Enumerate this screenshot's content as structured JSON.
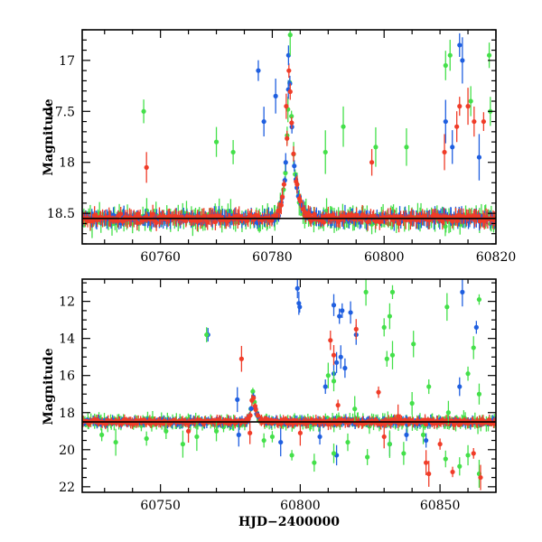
{
  "colors": {
    "blue": "#1f5fe0",
    "green": "#44e04a",
    "red": "#f03c28",
    "baseline": "#000000"
  },
  "chart_data": [
    {
      "type": "scatter",
      "title": "",
      "xlabel": "",
      "ylabel": "Magnitude",
      "xlim": [
        60746,
        60820
      ],
      "ylim": [
        18.8,
        16.7
      ],
      "y_inverted": true,
      "x_ticks": [
        60760,
        60780,
        60800,
        60820
      ],
      "x_tick_labels": [
        "60760",
        "60780",
        "60800",
        "60820"
      ],
      "y_ticks": [
        17,
        17.5,
        18,
        18.5
      ],
      "y_tick_labels": [
        "17",
        "17.5",
        "18",
        "18.5"
      ],
      "grid": false,
      "legend": "none",
      "baseline_magnitude": 18.55,
      "series": [
        {
          "color": "blue",
          "outliers": [
            [
              60777.5,
              17.1
            ],
            [
              60778.5,
              17.6
            ],
            [
              60780.6,
              17.35
            ],
            [
              60782.9,
              16.95
            ],
            [
              60811,
              17.6
            ],
            [
              60812.2,
              17.85
            ],
            [
              60813.5,
              16.85
            ],
            [
              60814,
              17.0
            ],
            [
              60817,
              17.95
            ]
          ]
        },
        {
          "color": "green",
          "outliers": [
            [
              60757,
              17.5
            ],
            [
              60783.2,
              16.75
            ],
            [
              60789.5,
              17.9
            ],
            [
              60792.7,
              17.65
            ],
            [
              60798.5,
              17.85
            ],
            [
              60804,
              17.85
            ],
            [
              60811,
              17.05
            ],
            [
              60811.8,
              16.95
            ],
            [
              60815.5,
              17.4
            ],
            [
              60818.8,
              16.95
            ],
            [
              60819,
              17.5
            ],
            [
              60770,
              17.8
            ],
            [
              60773,
              17.9
            ]
          ]
        },
        {
          "color": "red",
          "outliers": [
            [
              60757.5,
              18.05
            ],
            [
              60782.5,
              17.45
            ],
            [
              60797.8,
              18.0
            ],
            [
              60810.8,
              17.9
            ],
            [
              60813.5,
              17.45
            ],
            [
              60815,
              17.45
            ],
            [
              60816.1,
              17.6
            ],
            [
              60817.8,
              17.6
            ],
            [
              60813,
              17.65
            ]
          ]
        }
      ]
    },
    {
      "type": "scatter",
      "title": "",
      "xlabel": "HJD−2400000",
      "ylabel": "Magnitude",
      "xlim": [
        60722,
        60870
      ],
      "ylim": [
        22.3,
        10.8
      ],
      "y_inverted": true,
      "x_ticks": [
        60750,
        60800,
        60850
      ],
      "x_tick_labels": [
        "60750",
        "60800",
        "60850"
      ],
      "y_ticks": [
        12,
        14,
        16,
        18,
        20,
        22
      ],
      "y_tick_labels": [
        "12",
        "14",
        "16",
        "18",
        "20",
        "22"
      ],
      "grid": false,
      "legend": "none",
      "baseline_magnitude": 18.5,
      "series": [
        {
          "color": "blue",
          "outliers": [
            [
              60767,
              13.8
            ],
            [
              60777.5,
              17.3
            ],
            [
              60799,
              11.3
            ],
            [
              60799.5,
              12.1
            ],
            [
              60799.8,
              12.3
            ],
            [
              60812,
              12.2
            ],
            [
              60815,
              12.5
            ],
            [
              60814,
              12.8
            ],
            [
              60818,
              12.6
            ],
            [
              60820,
              13.8
            ],
            [
              60809,
              16.6
            ],
            [
              60813,
              15.3
            ],
            [
              60814.5,
              15.0
            ],
            [
              60816,
              15.6
            ],
            [
              60812,
              15.9
            ],
            [
              60858,
              11.5
            ],
            [
              60857,
              16.6
            ],
            [
              60863,
              13.4
            ],
            [
              60778,
              19.2
            ],
            [
              60793,
              19.6
            ],
            [
              60807,
              19.3
            ],
            [
              60813,
              20.3
            ],
            [
              60832,
              19.7
            ],
            [
              60838,
              19.2
            ],
            [
              60845,
              19.5
            ]
          ]
        },
        {
          "color": "green",
          "outliers": [
            [
              60766.5,
              13.8
            ],
            [
              60823.5,
              11.5
            ],
            [
              60833,
              11.5
            ],
            [
              60832,
              12.8
            ],
            [
              60830,
              13.4
            ],
            [
              60833,
              14.9
            ],
            [
              60831,
              15.1
            ],
            [
              60840.5,
              14.3
            ],
            [
              60852.5,
              12.3
            ],
            [
              60864,
              11.9
            ],
            [
              60862,
              14.5
            ],
            [
              60810,
              16.0
            ],
            [
              60812,
              16.3
            ],
            [
              60819.5,
              17.8
            ],
            [
              60840,
              17.5
            ],
            [
              60846,
              16.6
            ],
            [
              60860,
              15.9
            ],
            [
              60864,
              17.0
            ],
            [
              60853,
              18.0
            ],
            [
              60734,
              19.6
            ],
            [
              60745,
              19.4
            ],
            [
              60758,
              19.7
            ],
            [
              60763,
              19.3
            ],
            [
              60787,
              19.5
            ],
            [
              60797,
              20.3
            ],
            [
              60805,
              20.7
            ],
            [
              60812,
              20.2
            ],
            [
              60817,
              19.6
            ],
            [
              60824,
              20.4
            ],
            [
              60832,
              19.7
            ],
            [
              60837,
              20.2
            ],
            [
              60844,
              19.2
            ],
            [
              60852,
              20.5
            ],
            [
              60857,
              20.9
            ],
            [
              60860,
              20.3
            ],
            [
              60864,
              21.3
            ],
            [
              60729,
              19.2
            ],
            [
              60752,
              19.0
            ],
            [
              60770,
              19.0
            ],
            [
              60790,
              19.3
            ]
          ]
        },
        {
          "color": "red",
          "outliers": [
            [
              60779,
              15.1
            ],
            [
              60810.8,
              14.1
            ],
            [
              60812,
              14.9
            ],
            [
              60820,
              13.5
            ],
            [
              60828,
              16.9
            ],
            [
              60813.5,
              17.6
            ],
            [
              60835,
              18.2
            ],
            [
              60845,
              20.7
            ],
            [
              60846,
              21.3
            ],
            [
              60854.5,
              21.2
            ],
            [
              60864.5,
              21.5
            ],
            [
              60862,
              20.2
            ],
            [
              60850,
              19.7
            ],
            [
              60830,
              19.3
            ],
            [
              60760,
              19.0
            ],
            [
              60800,
              19.1
            ],
            [
              60782,
              19.1
            ]
          ]
        }
      ]
    }
  ]
}
